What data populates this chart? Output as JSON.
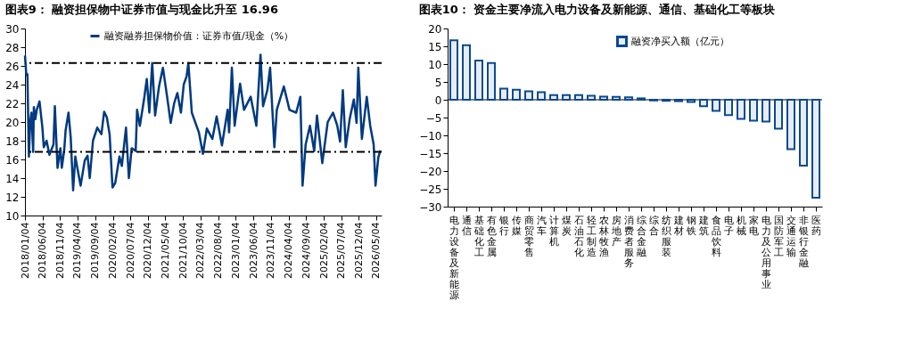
{
  "chart_data": [
    {
      "type": "line",
      "title": "图表9：  融资担保物中证券市值与现金比升至 16.96",
      "x": [
        "2018-01-04",
        "2018-01-16",
        "2018-01-25",
        "2018-02-07",
        "2018-02-18",
        "2018-03-01",
        "2018-03-16",
        "2018-03-22",
        "2018-04-04",
        "2018-04-16",
        "2018-05-10",
        "2018-06-04",
        "2018-06-16",
        "2018-07-10",
        "2018-08-04",
        "2018-09-08",
        "2018-09-20",
        "2018-10-13",
        "2018-11-07",
        "2018-11-19",
        "2018-12-10",
        "2018-12-22",
        "2019-01-16",
        "2019-02-04",
        "2019-02-25",
        "2019-03-16",
        "2019-04-10",
        "2019-05-01",
        "2019-06-06",
        "2019-06-30",
        "2019-07-19",
        "2019-08-16",
        "2019-09-22",
        "2019-10-28",
        "2019-11-21",
        "2019-12-14",
        "2020-01-07",
        "2020-02-01",
        "2020-02-25",
        "2020-04-01",
        "2020-04-22",
        "2020-05-28",
        "2020-06-22",
        "2020-07-16",
        "2020-08-20",
        "2020-09-01",
        "2020-09-25",
        "2020-10-31",
        "2020-11-24",
        "2020-12-16",
        "2021-01-10",
        "2021-02-04",
        "2021-03-10",
        "2021-04-13",
        "2021-05-19",
        "2021-06-19",
        "2021-07-19",
        "2021-08-16",
        "2021-09-16",
        "2021-10-10",
        "2021-11-04",
        "2021-11-19",
        "2021-12-19",
        "2022-02-18",
        "2022-03-25",
        "2022-04-28",
        "2022-06-15",
        "2022-07-22",
        "2022-09-06",
        "2022-10-25",
        "2022-11-07",
        "2022-12-01",
        "2022-12-25",
        "2023-02-10",
        "2023-03-16",
        "2023-05-13",
        "2023-07-01",
        "2023-08-06",
        "2023-08-28",
        "2023-10-04",
        "2023-10-28",
        "2023-12-04",
        "2023-12-25",
        "2024-02-24",
        "2024-04-13",
        "2024-06-10",
        "2024-07-16",
        "2024-08-04",
        "2024-08-31",
        "2024-10-07",
        "2024-11-13",
        "2024-12-07",
        "2025-01-22",
        "2025-03-10",
        "2025-04-25",
        "2025-06-01",
        "2025-06-25",
        "2025-07-19",
        "2025-08-13",
        "2025-09-16",
        "2025-10-22",
        "2025-11-15",
        "2025-11-30",
        "2025-12-31",
        "2026-02-11",
        "2026-03-13",
        "2026-04-12",
        "2026-04-28",
        "2026-05-22",
        "2026-06-09"
      ],
      "series": [
        {
          "name": "融资融券担保物价值：证券市值/现金（%）",
          "color": "#003a80",
          "values": [
            27.1,
            25.0,
            25.1,
            16.3,
            20.0,
            21.0,
            16.8,
            21.6,
            20.3,
            21.3,
            22.2,
            19.4,
            17.3,
            18.0,
            16.5,
            17.6,
            21.7,
            15.1,
            17.2,
            15.1,
            17.0,
            19.1,
            21.0,
            18.4,
            12.7,
            16.3,
            14.6,
            13.2,
            15.9,
            16.4,
            14.0,
            18.0,
            19.4,
            18.7,
            21.1,
            20.5,
            18.7,
            13.0,
            13.5,
            16.3,
            15.3,
            19.4,
            14.0,
            17.2,
            16.9,
            21.3,
            19.6,
            22.4,
            24.6,
            21.0,
            26.3,
            20.7,
            23.8,
            25.8,
            22.7,
            19.9,
            22.0,
            23.1,
            21.0,
            24.0,
            24.9,
            26.3,
            21.0,
            18.9,
            16.6,
            19.3,
            18.2,
            20.6,
            17.5,
            21.3,
            18.9,
            25.8,
            19.6,
            24.1,
            21.3,
            22.7,
            19.6,
            27.2,
            21.7,
            23.4,
            25.8,
            17.3,
            21.3,
            23.8,
            21.3,
            21.0,
            22.7,
            13.2,
            17.6,
            19.6,
            16.9,
            20.7,
            15.6,
            20.0,
            21.0,
            19.6,
            17.9,
            23.4,
            17.3,
            20.3,
            22.4,
            19.9,
            25.8,
            18.2,
            22.7,
            19.6,
            17.6,
            13.2,
            16.2,
            16.96
          ]
        }
      ],
      "xlim": [
        "2018-01-04",
        "2026-06-20"
      ],
      "xticks": [
        {
          "value": "2018-01-04",
          "label": "2018/01/04"
        },
        {
          "value": "2018-06-04",
          "label": "2018/06/04"
        },
        {
          "value": "2018-11-04",
          "label": "2018/11/04"
        },
        {
          "value": "2019-04-04",
          "label": "2019/04/04"
        },
        {
          "value": "2019-09-04",
          "label": "2019/09/04"
        },
        {
          "value": "2020-02-04",
          "label": "2020/02/04"
        },
        {
          "value": "2020-07-04",
          "label": "2020/07/04"
        },
        {
          "value": "2020-12-04",
          "label": "2020/12/04"
        },
        {
          "value": "2021-05-04",
          "label": "2021/05/04"
        },
        {
          "value": "2021-10-04",
          "label": "2021/10/04"
        },
        {
          "value": "2022-03-04",
          "label": "2022/03/04"
        },
        {
          "value": "2022-08-04",
          "label": "2022/08/04"
        },
        {
          "value": "2023-01-04",
          "label": "2023/01/04"
        },
        {
          "value": "2023-06-04",
          "label": "2023/06/04"
        },
        {
          "value": "2023-11-04",
          "label": "2023/11/04"
        },
        {
          "value": "2024-04-04",
          "label": "2024/04/04"
        },
        {
          "value": "2024-09-04",
          "label": "2024/09/04"
        },
        {
          "value": "2025-02-04",
          "label": "2025/02/04"
        },
        {
          "value": "2025-07-04",
          "label": "2025/07/04"
        },
        {
          "value": "2025-12-04",
          "label": "2025/12/04"
        },
        {
          "value": "2026-05-04",
          "label": "2026/05/04"
        }
      ],
      "ylim": [
        10,
        30
      ],
      "yticks": [
        10,
        12,
        14,
        16,
        18,
        20,
        22,
        24,
        26,
        28,
        30
      ],
      "ref_lines": [
        {
          "axis": "y",
          "value": 26.3,
          "color": "#000000",
          "line_style": "dashed"
        },
        {
          "axis": "y",
          "value": 16.8,
          "color": "#000000",
          "line_style": "dashed"
        }
      ],
      "legend": "top",
      "line_style": "solid"
    },
    {
      "type": "bar",
      "title": "图表10：  资金主要净流入电力设备及新能源、通信、基础化工等板块",
      "categories": [
        "电力设备及新能源",
        "通信",
        "基础化工",
        "有色金属",
        "银行",
        "传媒",
        "商贸零售",
        "汽车",
        "计算机",
        "煤炭",
        "石油石化",
        "轻工制造",
        "农林牧渔",
        "房地产",
        "消费者服务",
        "综合金融",
        "综合",
        "纺织服装",
        "建材",
        "钢铁",
        "建筑",
        "食品饮料",
        "电子",
        "机械",
        "家电",
        "电力及公用事业",
        "国防军工",
        "交通运输",
        "非银行金融",
        "医药"
      ],
      "series": [
        {
          "name": "融资净买入额（亿元）",
          "color": "#0a4a8f",
          "values": [
            16.7,
            15.3,
            11.0,
            10.3,
            3.1,
            2.8,
            2.4,
            2.1,
            1.3,
            1.3,
            1.3,
            1.1,
            0.9,
            0.8,
            0.7,
            0.4,
            -0.2,
            -0.3,
            -0.4,
            -0.6,
            -1.8,
            -3.1,
            -4.3,
            -5.4,
            -5.9,
            -6.1,
            -8.1,
            -13.9,
            -18.5,
            -27.5
          ]
        }
      ],
      "ylim": [
        -30,
        20
      ],
      "yticks": [
        -30,
        -25,
        -20,
        -15,
        -10,
        -5,
        0,
        5,
        10,
        15,
        20
      ],
      "legend": "top right"
    }
  ]
}
